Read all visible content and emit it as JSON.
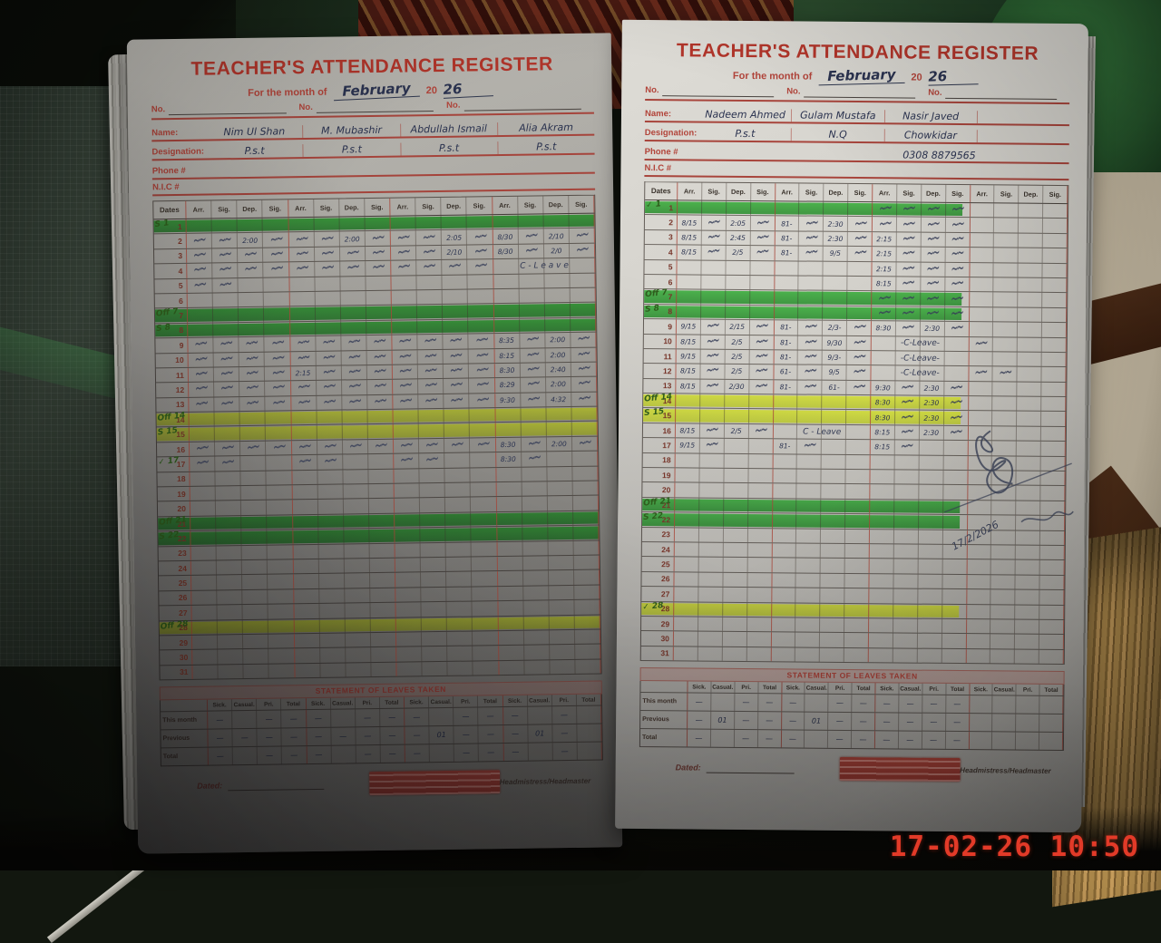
{
  "photo": {
    "timestamp": "17-02-26  10:50"
  },
  "form": {
    "title": "TEACHER'S ATTENDANCE REGISTER",
    "month_label": "For the month of",
    "month_value": "February",
    "year_prefix": "20",
    "year_value": "26",
    "no_label": "No.",
    "name_label": "Name:",
    "designation_label": "Designation:",
    "phone_label": "Phone #",
    "nic_label": "N.I.C #",
    "dates_header": "Dates",
    "group_headers": [
      "Arr.",
      "Sig.",
      "Dep.",
      "Sig."
    ],
    "days": 31,
    "leaves_title": "STATEMENT OF LEAVES TAKEN",
    "leaves_columns": [
      "Sick.",
      "Casual.",
      "Pri.",
      "Total"
    ],
    "leaves_row_labels": [
      "This month",
      "Previous",
      "Total"
    ],
    "dated_label": "Dated:",
    "signature_label": "Headmistress/Headmaster"
  },
  "left_page": {
    "names": [
      "Nim Ul Shan",
      "M. Mubashir",
      "Abdullah Ismail",
      "Alia Akram"
    ],
    "designations": [
      "P.s.t",
      "P.s.t",
      "P.s.t",
      "P.s.t"
    ],
    "phone": "",
    "highlights": {
      "green": [
        1,
        7,
        8,
        21,
        22
      ],
      "yellow": [
        14,
        15,
        28
      ]
    },
    "notes": {
      "1": "S",
      "7": "Off",
      "8": "S",
      "14": "Off",
      "15": "S",
      "17": "✓",
      "21": "Off",
      "22": "S",
      "28": "Off"
    },
    "rows": {
      "2": {
        "cells": [
          "~",
          "~",
          "2:00",
          "~",
          "~",
          "~",
          "2:00",
          "~",
          "~",
          "~",
          "2:05",
          "~",
          "8/30",
          "~",
          "2/10",
          "~"
        ]
      },
      "3": {
        "cells": [
          "~",
          "~",
          "~",
          "~",
          "~",
          "~",
          "~",
          "~",
          "~",
          "~",
          "2/10",
          "~",
          "8/30",
          "~",
          "2/0",
          "~"
        ]
      },
      "4": {
        "cells": [
          "~",
          "~",
          "~",
          "~",
          "~",
          "~",
          "~",
          "~",
          "~",
          "~",
          "~",
          "~",
          "",
          "",
          "",
          ""
        ],
        "span": {
          "start": 12,
          "len": 4,
          "text": "C - L e a v e"
        }
      },
      "5": {
        "cells": [
          "~",
          "~",
          "",
          "",
          "",
          "",
          "",
          "",
          "",
          "",
          "",
          "",
          "",
          "",
          "",
          ""
        ]
      },
      "9": {
        "cells": [
          "~",
          "~",
          "~",
          "~",
          "~",
          "~",
          "~",
          "~",
          "~",
          "~",
          "~",
          "~",
          "8:35",
          "~",
          "2:00",
          "~"
        ]
      },
      "10": {
        "cells": [
          "~",
          "~",
          "~",
          "~",
          "~",
          "~",
          "~",
          "~",
          "~",
          "~",
          "~",
          "~",
          "8:15",
          "~",
          "2:00",
          "~"
        ]
      },
      "11": {
        "cells": [
          "~",
          "~",
          "~",
          "~",
          "2:15",
          "~",
          "~",
          "~",
          "~",
          "~",
          "~",
          "~",
          "8:30",
          "~",
          "2:40",
          "~"
        ]
      },
      "12": {
        "cells": [
          "~",
          "~",
          "~",
          "~",
          "~",
          "~",
          "~",
          "~",
          "~",
          "~",
          "~",
          "~",
          "8:29",
          "~",
          "2:00",
          "~"
        ]
      },
      "13": {
        "cells": [
          "~",
          "~",
          "~",
          "~",
          "~",
          "~",
          "~",
          "~",
          "~",
          "~",
          "~",
          "~",
          "9:30",
          "~",
          "4:32",
          "~"
        ]
      },
      "16": {
        "cells": [
          "~",
          "~",
          "~",
          "~",
          "~",
          "~",
          "~",
          "~",
          "~",
          "~",
          "~",
          "~",
          "8:30",
          "~",
          "2:00",
          "~"
        ]
      },
      "17": {
        "cells": [
          "~",
          "~",
          "",
          "",
          "~",
          "~",
          "",
          "",
          "~",
          "~",
          "",
          "",
          "8:30",
          "~",
          "",
          ""
        ]
      }
    },
    "leaves": {
      "this_month": [
        "—",
        "",
        "—",
        "—",
        "—",
        "",
        "—",
        "—",
        "—",
        "",
        "—",
        "—",
        "—",
        "",
        "—",
        ""
      ],
      "previous": [
        "—",
        "—",
        "—",
        "—",
        "—",
        "—",
        "—",
        "—",
        "—",
        "01",
        "—",
        "—",
        "—",
        "01",
        "—",
        ""
      ],
      "total": [
        "—",
        "",
        "—",
        "—",
        "—",
        "",
        "—",
        "—",
        "—",
        "",
        "—",
        "—",
        "—",
        "",
        "—",
        ""
      ]
    }
  },
  "right_page": {
    "names": [
      "Nadeem Ahmed",
      "Gulam Mustafa",
      "Nasir Javed",
      ""
    ],
    "designations": [
      "P.s.t",
      "N.Q",
      "Chowkidar",
      ""
    ],
    "phone": "0308 8879565",
    "signature_date": "17/2/2026",
    "highlights": {
      "green": [
        1,
        7,
        8,
        21,
        22
      ],
      "yellow": [
        14,
        15,
        28
      ]
    },
    "notes": {
      "1": "✓",
      "7": "Off",
      "8": "S",
      "14": "Off",
      "15": "S",
      "21": "Off",
      "22": "S",
      "28": "✓"
    },
    "rows": {
      "1": {
        "cells": [
          "",
          "",
          "",
          "",
          "",
          "",
          "",
          "",
          "~",
          "~",
          "~",
          "~",
          "",
          "",
          "",
          ""
        ]
      },
      "2": {
        "cells": [
          "8/15",
          "~",
          "2:05",
          "~",
          "81-",
          "~",
          "2:30",
          "~",
          "~",
          "~",
          "~",
          "~",
          "",
          "",
          "",
          ""
        ]
      },
      "3": {
        "cells": [
          "8/15",
          "~",
          "2:45",
          "~",
          "81-",
          "~",
          "2:30",
          "~",
          "2:15",
          "~",
          "~",
          "~",
          "",
          "",
          "",
          ""
        ]
      },
      "4": {
        "cells": [
          "8/15",
          "~",
          "2/5",
          "~",
          "81-",
          "~",
          "9/5",
          "~",
          "2:15",
          "~",
          "~",
          "~",
          "",
          "",
          "",
          ""
        ]
      },
      "5": {
        "cells": [
          "",
          "",
          "",
          "",
          "",
          "",
          "",
          "",
          "2:15",
          "~",
          "~",
          "~",
          "",
          "",
          "",
          ""
        ]
      },
      "6": {
        "cells": [
          "",
          "",
          "",
          "",
          "",
          "",
          "",
          "",
          "8:15",
          "~",
          "~",
          "~",
          "",
          "",
          "",
          ""
        ]
      },
      "7": {
        "cells": [
          "",
          "",
          "",
          "",
          "",
          "",
          "",
          "",
          "~",
          "~",
          "~",
          "~",
          "",
          "",
          "",
          ""
        ]
      },
      "8": {
        "cells": [
          "",
          "",
          "",
          "",
          "",
          "",
          "",
          "",
          "~",
          "~",
          "~",
          "~",
          "",
          "",
          "",
          ""
        ]
      },
      "9": {
        "cells": [
          "9/15",
          "~",
          "2/15",
          "~",
          "81-",
          "~",
          "2/3-",
          "~",
          "8:30",
          "~",
          "2:30",
          "~",
          "",
          "",
          "",
          ""
        ]
      },
      "10": {
        "cells": [
          "8/15",
          "~",
          "2/5",
          "~",
          "81-",
          "~",
          "9/30",
          "~",
          "",
          "",
          "",
          "",
          "~",
          "",
          "",
          ""
        ],
        "span": {
          "start": 8,
          "len": 4,
          "text": "-C-Leave-"
        }
      },
      "11": {
        "cells": [
          "9/15",
          "~",
          "2/5",
          "~",
          "81-",
          "~",
          "9/3-",
          "~",
          "",
          "",
          "",
          "",
          "",
          "",
          "",
          ""
        ],
        "span": {
          "start": 8,
          "len": 4,
          "text": "-C-Leave-"
        }
      },
      "12": {
        "cells": [
          "8/15",
          "~",
          "2/5",
          "~",
          "61-",
          "~",
          "9/5",
          "~",
          "",
          "",
          "",
          "",
          "~",
          "~",
          "",
          ""
        ],
        "span": {
          "start": 8,
          "len": 4,
          "text": "-C-Leave-"
        }
      },
      "13": {
        "cells": [
          "8/15",
          "~",
          "2/30",
          "~",
          "81-",
          "~",
          "61-",
          "~",
          "9:30",
          "~",
          "2:30",
          "~",
          "",
          "",
          "",
          ""
        ]
      },
      "14": {
        "cells": [
          "",
          "",
          "",
          "",
          "",
          "",
          "",
          "",
          "8:30",
          "~",
          "2:30",
          "~",
          "",
          "",
          "",
          ""
        ]
      },
      "15": {
        "cells": [
          "",
          "",
          "",
          "",
          "",
          "",
          "",
          "",
          "8:30",
          "~",
          "2:30",
          "~",
          "",
          "",
          "",
          ""
        ]
      },
      "16": {
        "cells": [
          "8/15",
          "~",
          "2/5",
          "~",
          "",
          "",
          "",
          "",
          "8:15",
          "~",
          "2:30",
          "~",
          "",
          "",
          "",
          ""
        ],
        "span": {
          "start": 4,
          "len": 4,
          "text": "C - Leave"
        }
      },
      "17": {
        "cells": [
          "9/15",
          "~",
          "",
          "",
          "81-",
          "~",
          "",
          "",
          "8:15",
          "~",
          "",
          "",
          "",
          "",
          "",
          ""
        ]
      }
    },
    "leaves": {
      "this_month": [
        "—",
        "",
        "—",
        "—",
        "—",
        "",
        "—",
        "—",
        "—",
        "—",
        "—",
        "—",
        "",
        "",
        "",
        ""
      ],
      "previous": [
        "—",
        "01",
        "—",
        "—",
        "—",
        "01",
        "—",
        "—",
        "—",
        "—",
        "—",
        "—",
        "",
        "",
        "",
        ""
      ],
      "total": [
        "—",
        "",
        "—",
        "—",
        "—",
        "",
        "—",
        "—",
        "—",
        "—",
        "—",
        "—",
        "",
        "",
        "",
        ""
      ]
    }
  }
}
